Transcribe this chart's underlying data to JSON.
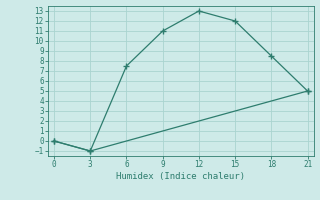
{
  "line1_x": [
    0,
    3,
    6,
    9,
    12,
    15,
    18,
    21
  ],
  "line1_y": [
    0,
    -1,
    7.5,
    11,
    13,
    12,
    8.5,
    5
  ],
  "line2_x": [
    0,
    3,
    21
  ],
  "line2_y": [
    0,
    -1,
    5
  ],
  "color": "#2e7d6e",
  "bg_color": "#ceeae8",
  "grid_color": "#aad4d0",
  "xlabel": "Humidex (Indice chaleur)",
  "xlim": [
    -0.5,
    21.5
  ],
  "ylim": [
    -1.5,
    13.5
  ],
  "xticks": [
    0,
    3,
    6,
    9,
    12,
    15,
    18,
    21
  ],
  "yticks": [
    -1,
    0,
    1,
    2,
    3,
    4,
    5,
    6,
    7,
    8,
    9,
    10,
    11,
    12,
    13
  ],
  "marker": "+",
  "markersize": 4,
  "linewidth": 0.9,
  "tick_fontsize": 5.5,
  "xlabel_fontsize": 6.5
}
